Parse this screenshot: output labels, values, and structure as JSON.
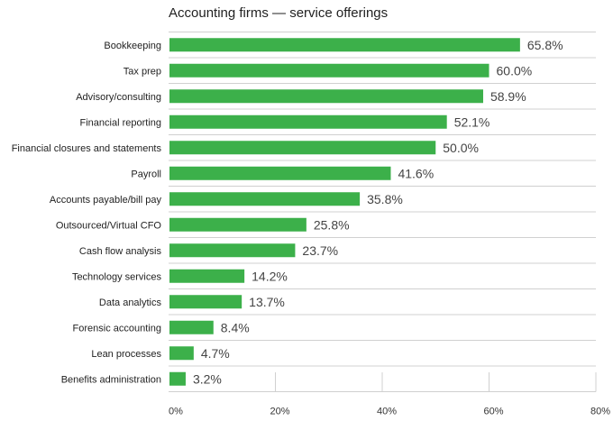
{
  "chart_data": {
    "type": "bar",
    "orientation": "horizontal",
    "title": "Accounting firms — service offerings",
    "xlabel": "",
    "ylabel": "",
    "categories": [
      "Bookkeeping",
      "Tax prep",
      "Advisory/consulting",
      "Financial reporting",
      "Financial closures and statements",
      "Payroll",
      "Accounts payable/bill pay",
      "Outsourced/Virtual CFO",
      "Cash flow analysis",
      "Technology services",
      "Data analytics",
      "Forensic accounting",
      "Lean processes",
      "Benefits administration"
    ],
    "values": [
      65.8,
      60.0,
      58.9,
      52.1,
      50.0,
      41.6,
      35.8,
      25.8,
      23.7,
      14.2,
      13.7,
      8.4,
      4.7,
      3.2
    ],
    "value_labels": [
      "65.8%",
      "60.0%",
      "58.9%",
      "52.1%",
      "50.0%",
      "41.6%",
      "35.8%",
      "25.8%",
      "23.7%",
      "14.2%",
      "13.7%",
      "8.4%",
      "4.7%",
      "3.2%"
    ],
    "xlim": [
      0,
      80
    ],
    "xticks": [
      0,
      20,
      40,
      60,
      80
    ],
    "xtick_labels": [
      "0%",
      "20%",
      "40%",
      "60%",
      "80%"
    ],
    "bar_color": "#3cb04a",
    "grid": true,
    "legend": "none"
  }
}
